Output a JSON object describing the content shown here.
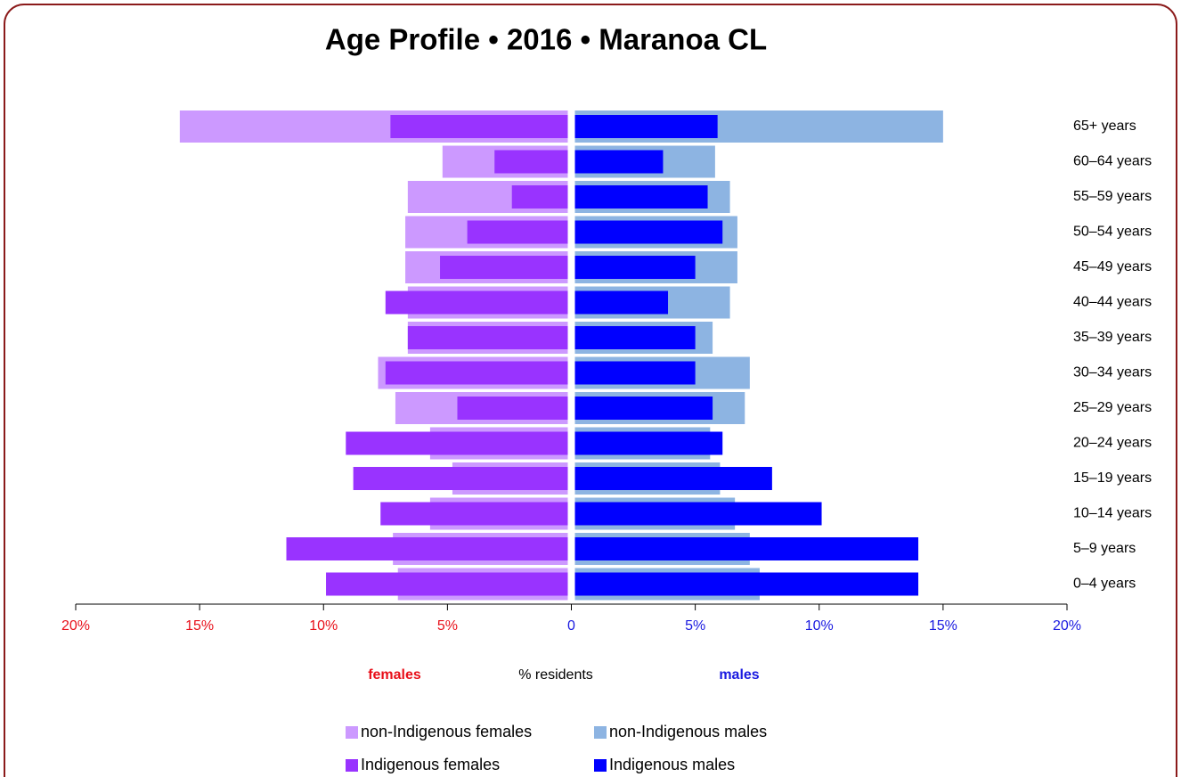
{
  "chart_data": {
    "type": "pyramid",
    "title": "Age Profile  •  2016  •  Maranoa CL",
    "categories": [
      "65+ years",
      "60–64 years",
      "55–59 years",
      "50–54 years",
      "45–49 years",
      "40–44 years",
      "35–39 years",
      "30–34 years",
      "25–29 years",
      "20–24 years",
      "15–19 years",
      "10–14 years",
      "5–9 years",
      "0–4 years"
    ],
    "series": [
      {
        "name": "non-Indigenous females",
        "side": "left",
        "color": "#cc99ff",
        "values": [
          15.8,
          5.2,
          6.6,
          6.7,
          6.7,
          6.6,
          6.6,
          7.8,
          7.1,
          5.7,
          4.8,
          5.7,
          7.2,
          7.0
        ]
      },
      {
        "name": "Indigenous females",
        "side": "left",
        "color": "#9933ff",
        "values": [
          7.3,
          3.1,
          2.4,
          4.2,
          5.3,
          7.5,
          6.6,
          7.5,
          4.6,
          9.1,
          8.8,
          7.7,
          11.5,
          9.9
        ]
      },
      {
        "name": "non-Indigenous males",
        "side": "right",
        "color": "#8db4e2",
        "values": [
          15.0,
          5.8,
          6.4,
          6.7,
          6.7,
          6.4,
          5.7,
          7.2,
          7.0,
          5.6,
          6.0,
          6.6,
          7.2,
          7.6
        ]
      },
      {
        "name": "Indigenous males",
        "side": "right",
        "color": "#0000ff",
        "values": [
          5.9,
          3.7,
          5.5,
          6.1,
          5.0,
          3.9,
          5.0,
          5.0,
          5.7,
          6.1,
          8.1,
          10.1,
          14.0,
          14.0
        ]
      }
    ],
    "xlim": [
      -20,
      20
    ],
    "xticks": [
      {
        "value": -20,
        "label": "20%"
      },
      {
        "value": -15,
        "label": "15%"
      },
      {
        "value": -10,
        "label": "10%"
      },
      {
        "value": -5,
        "label": "5%"
      },
      0,
      {
        "value": 5,
        "label": "5%"
      },
      {
        "value": 10,
        "label": "10%"
      },
      {
        "value": 15,
        "label": "15%"
      },
      {
        "value": 20,
        "label": "20%"
      }
    ],
    "left_color": "#e8101a",
    "right_color": "#1a1ae0",
    "left_label": "females",
    "x_label": "% residents",
    "right_label": "males"
  }
}
